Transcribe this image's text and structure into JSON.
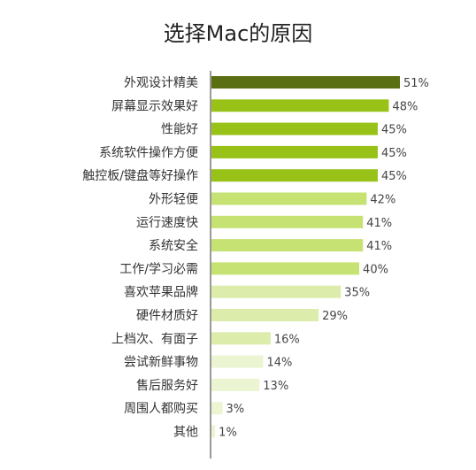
{
  "chart_data": {
    "type": "bar",
    "orientation": "horizontal",
    "title": "选择Mac的原因",
    "categories": [
      "外观设计精美",
      "屏幕显示效果好",
      "性能好",
      "系统软件操作方便",
      "触控板/键盘等好操作",
      "外形轻便",
      "运行速度快",
      "系统安全",
      "工作/学习必需",
      "喜欢苹果品牌",
      "硬件材质好",
      "上档次、有面子",
      "尝试新鲜事物",
      "售后服务好",
      "周围人都购买",
      "其他"
    ],
    "values": [
      51,
      48,
      45,
      45,
      45,
      42,
      41,
      41,
      40,
      35,
      29,
      16,
      14,
      13,
      3,
      1
    ],
    "value_labels": [
      "51%",
      "48%",
      "45%",
      "45%",
      "45%",
      "42%",
      "41%",
      "41%",
      "40%",
      "35%",
      "29%",
      "16%",
      "14%",
      "13%",
      "3%",
      "1%"
    ],
    "value_unit": "%",
    "xlim": [
      0,
      51
    ],
    "grid": false,
    "legend": "none",
    "colors": {
      "top": "#5a6e12",
      "high": "#98c218",
      "mid": "#c6e272",
      "low": "#dcedab",
      "lowest": "#ecf5d2",
      "axis": "#333333"
    }
  }
}
